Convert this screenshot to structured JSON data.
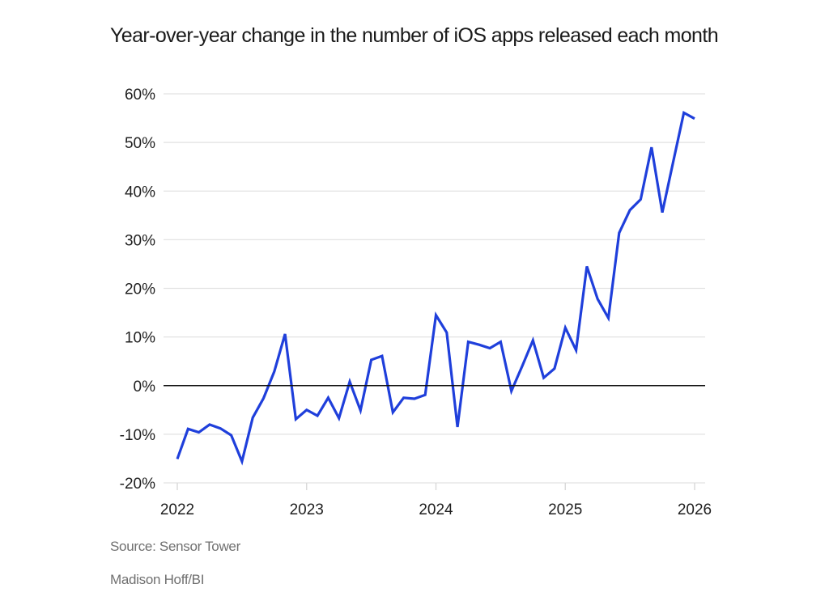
{
  "chart_data": {
    "type": "line",
    "title": "Year-over-year change in the number of iOS apps released each month",
    "xlabel": "",
    "ylabel": "",
    "ylim": [
      -20,
      60
    ],
    "yticks": [
      60,
      50,
      40,
      30,
      20,
      10,
      0,
      -10,
      -20
    ],
    "ytick_labels": [
      "60%",
      "50%",
      "40%",
      "30%",
      "20%",
      "10%",
      "0%",
      "-10%",
      "-20%"
    ],
    "xticks": [
      "2022",
      "2023",
      "2024",
      "2025",
      "2026"
    ],
    "x_start": "2022-01",
    "x_end": "2026-01",
    "grid": true,
    "zero_line": true,
    "series": [
      {
        "name": "YoY change in iOS apps released",
        "color": "#1f3fdb",
        "x": [
          "2022-01",
          "2022-02",
          "2022-03",
          "2022-04",
          "2022-05",
          "2022-06",
          "2022-07",
          "2022-08",
          "2022-09",
          "2022-10",
          "2022-11",
          "2022-12",
          "2023-01",
          "2023-02",
          "2023-03",
          "2023-04",
          "2023-05",
          "2023-06",
          "2023-07",
          "2023-08",
          "2023-09",
          "2023-10",
          "2023-11",
          "2023-12",
          "2024-01",
          "2024-02",
          "2024-03",
          "2024-04",
          "2024-05",
          "2024-06",
          "2024-07",
          "2024-08",
          "2024-09",
          "2024-10",
          "2024-11",
          "2024-12",
          "2025-01",
          "2025-02",
          "2025-03",
          "2025-04",
          "2025-05",
          "2025-06",
          "2025-07",
          "2025-08",
          "2025-09",
          "2025-10",
          "2025-11",
          "2025-12",
          "2026-01"
        ],
        "values": [
          -15.1,
          -8.9,
          -9.6,
          -8.0,
          -8.8,
          -10.2,
          -15.6,
          -6.6,
          -2.6,
          2.9,
          10.6,
          -6.9,
          -5.0,
          -6.2,
          -2.5,
          -6.7,
          0.8,
          -5.1,
          5.3,
          6.1,
          -5.5,
          -2.5,
          -2.7,
          -1.9,
          14.5,
          10.9,
          -8.5,
          9.0,
          8.4,
          7.7,
          9.0,
          -1.1,
          4.0,
          9.3,
          1.6,
          3.5,
          11.9,
          7.3,
          24.5,
          17.8,
          13.9,
          31.4,
          36.1,
          38.3,
          49.0,
          35.6,
          45.9,
          56.1,
          54.9
        ]
      }
    ]
  },
  "source": "Source: Sensor Tower",
  "credit": "Madison Hoff/BI"
}
